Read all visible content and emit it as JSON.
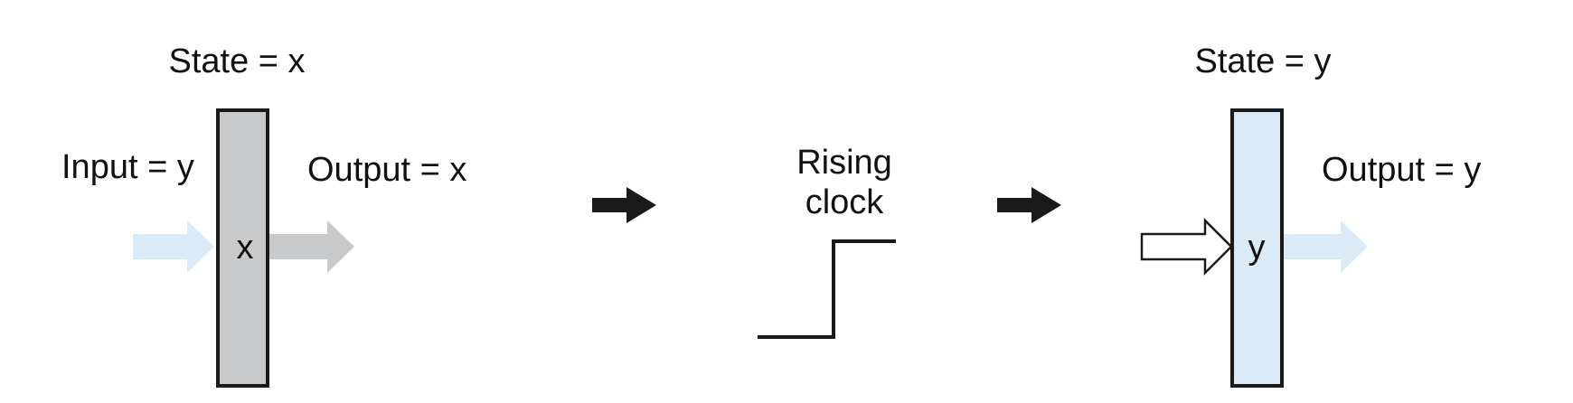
{
  "left_register": {
    "state_label": "State = x",
    "input_label": "Input = y",
    "output_label": "Output = x",
    "stored_value": "x",
    "fill_color": "#c8c9cb",
    "input_arrow_color": "#dbeaf7",
    "output_arrow_color": "#c8c9cb"
  },
  "clock": {
    "label_line1": "Rising",
    "label_line2": "clock"
  },
  "right_register": {
    "state_label": "State = y",
    "output_label": "Output =  y",
    "stored_value": "y",
    "fill_color": "#dbeaf7",
    "input_arrow_color": "#ffffff",
    "output_arrow_color": "#dbeaf7"
  },
  "flow_arrow_color": "#1a1a1a",
  "border_color": "#1a1a1a"
}
